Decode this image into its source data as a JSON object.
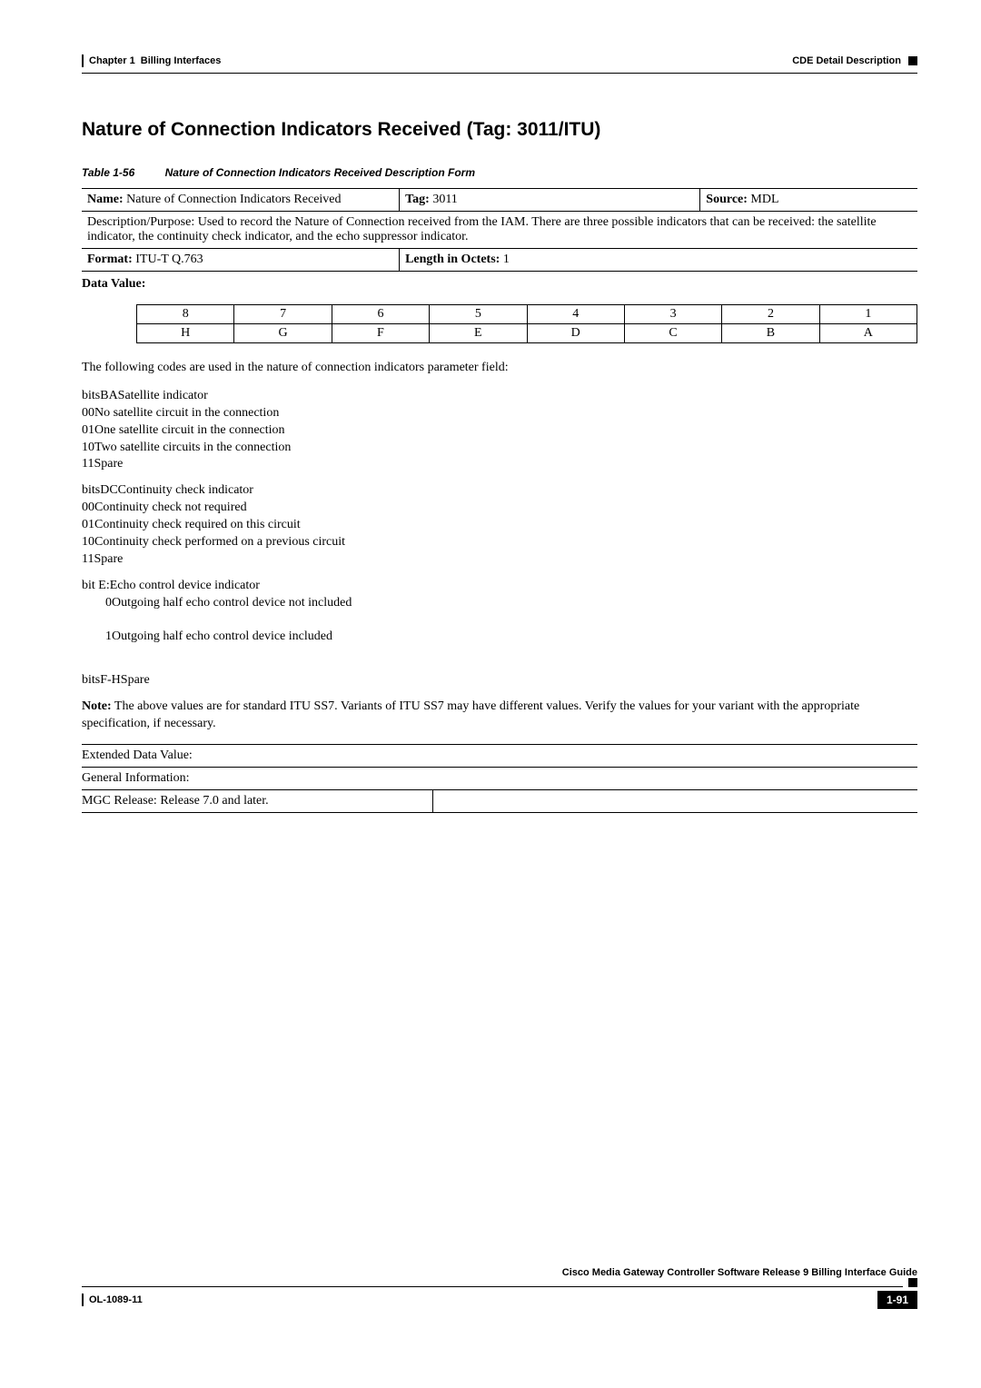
{
  "header": {
    "chapter": "Chapter 1",
    "section": "Billing Interfaces",
    "rightLabel": "CDE Detail Description"
  },
  "title": "Nature of Connection Indicators Received (Tag: 3011/ITU)",
  "tableCaption": {
    "num": "Table 1-56",
    "title": "Nature of Connection Indicators Received Description Form"
  },
  "form": {
    "nameLabel": "Name:",
    "nameValue": "Nature of Connection Indicators Received",
    "tagLabel": "Tag:",
    "tagValue": "3011",
    "sourceLabel": "Source:",
    "sourceValue": "MDL",
    "description": "Description/Purpose: Used to record the Nature of Connection received from the IAM. There are three possible indicators that can be received: the satellite indicator, the continuity check indicator, and the echo suppressor indicator.",
    "formatLabel": "Format:",
    "formatValue": "ITU-T Q.763",
    "lengthLabel": "Length in Octets:",
    "lengthValue": "1",
    "dataValueLabel": "Data Value:"
  },
  "bitsTable": {
    "row1": [
      "8",
      "7",
      "6",
      "5",
      "4",
      "3",
      "2",
      "1"
    ],
    "row2": [
      "H",
      "G",
      "F",
      "E",
      "D",
      "C",
      "B",
      "A"
    ]
  },
  "intro": "The following codes are used in the nature of connection indicators parameter field:",
  "blocks": [
    {
      "head": "bitsBASatellite indicator",
      "lines": [
        "00No satellite circuit in the connection",
        "01One satellite circuit in the connection",
        "10Two satellite circuits in the connection",
        "11Spare"
      ],
      "indent": false
    },
    {
      "head": "bitsDCContinuity check indicator",
      "lines": [
        "00Continuity check not required",
        "01Continuity check required on this circuit",
        "10Continuity check performed on a previous circuit",
        "11Spare"
      ],
      "indent": false
    },
    {
      "head": "bit E:Echo control device indicator",
      "lines": [
        "0Outgoing half echo control device not included",
        "1Outgoing half echo control device included"
      ],
      "indent": true
    },
    {
      "head": "bitsF-HSpare",
      "lines": [],
      "indent": false
    }
  ],
  "noteLabel": "Note:",
  "noteText": " The above values are for standard ITU SS7. Variants of ITU SS7 may have different values. Verify the values for your variant with the appropriate specification, if necessary.",
  "extended": "Extended Data Value:",
  "general": "General Information:",
  "mgc": "MGC Release: Release 7.0 and later.",
  "footer": {
    "guide": "Cisco Media Gateway Controller Software Release 9 Billing Interface Guide",
    "doc": "OL-1089-11",
    "page": "1-91"
  }
}
